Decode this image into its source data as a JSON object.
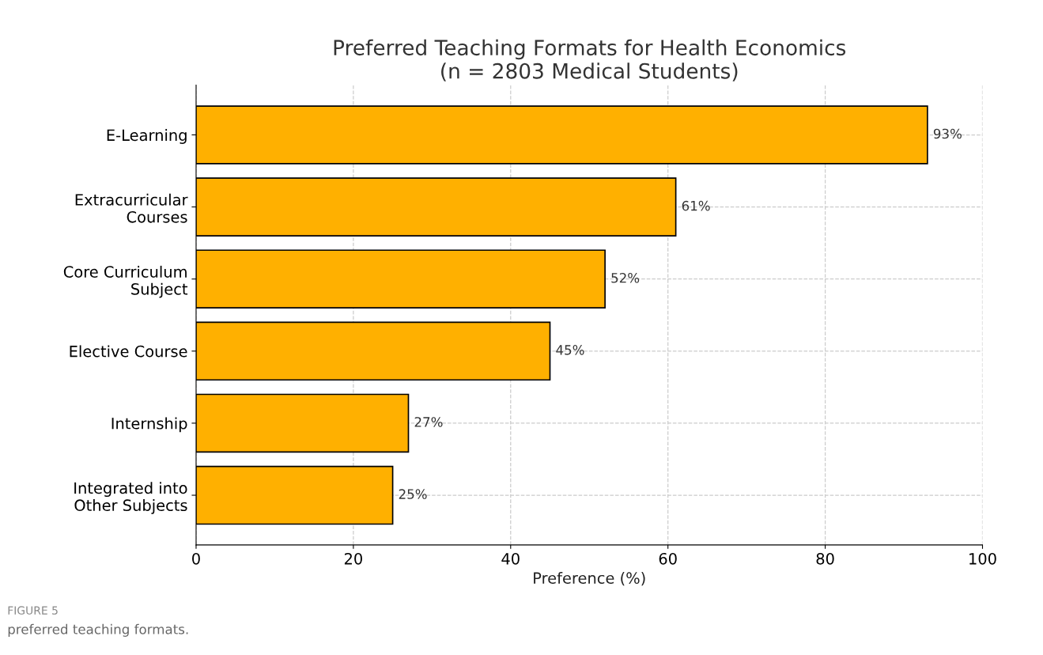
{
  "chart_data": {
    "type": "bar",
    "orientation": "horizontal",
    "title": "Preferred Teaching Formats for Health Economics\n(n = 2803 Medical Students)",
    "xlabel": "Preference (%)",
    "categories": [
      "E-Learning",
      "Extracurricular\nCourses",
      "Core Curriculum\nSubject",
      "Elective Course",
      "Internship",
      "Integrated into\nOther Subjects"
    ],
    "values": [
      93,
      61,
      52,
      45,
      27,
      25
    ],
    "value_labels": [
      "93%",
      "61%",
      "52%",
      "45%",
      "27%",
      "25%"
    ],
    "color": "#ffb000",
    "xlim": [
      0,
      100
    ],
    "xticks": [
      0,
      20,
      40,
      60,
      80,
      100
    ],
    "grid": true,
    "annotations": [
      "FIGURE 5",
      "preferred teaching formats."
    ]
  }
}
